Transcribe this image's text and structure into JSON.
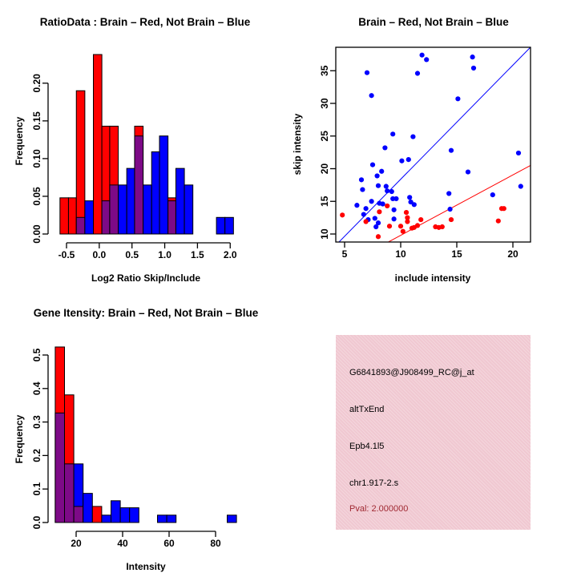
{
  "colors": {
    "red": "#FF0000",
    "blue": "#0000FF",
    "purple_overlap": "#7D0A87",
    "axis": "#000000",
    "info_box_bg": "#F0C8D1",
    "pval_text": "#A02A33"
  },
  "chart_data": [
    {
      "id": "ratio_histogram",
      "type": "bar",
      "title": "RatioData : Brain – Red, Not Brain – Blue",
      "xlabel": "Log2 Ratio Skip/Include",
      "ylabel": "Frequency",
      "xlim": [
        -0.72,
        2.2
      ],
      "ylim": [
        0,
        0.245
      ],
      "grid": false,
      "legend": "none",
      "xtick_values": [
        -0.5,
        0.0,
        0.5,
        1.0,
        1.5,
        2.0
      ],
      "xtick_labels": [
        "-0.5",
        "0.0",
        "0.5",
        "1.0",
        "1.5",
        "2.0"
      ],
      "ytick_values": [
        0.0,
        0.05,
        0.1,
        0.15,
        0.2
      ],
      "ytick_labels": [
        "0.00",
        "0.05",
        "0.10",
        "0.15",
        "0.20"
      ],
      "series_note": "red = Brain frequency, blue = Not Brain frequency, purple = overlap of the two histograms",
      "bars": [
        {
          "x0": -0.6,
          "x1": -0.47,
          "red": 0.048,
          "blue": 0
        },
        {
          "x0": -0.47,
          "x1": -0.35,
          "red": 0.048,
          "blue": 0
        },
        {
          "x0": -0.35,
          "x1": -0.22,
          "red": 0.19,
          "blue": 0.022
        },
        {
          "x0": -0.22,
          "x1": -0.09,
          "red": 0,
          "blue": 0.044
        },
        {
          "x0": -0.09,
          "x1": 0.04,
          "red": 0.238,
          "blue": 0
        },
        {
          "x0": 0.04,
          "x1": 0.16,
          "red": 0.143,
          "blue": 0.044
        },
        {
          "x0": 0.16,
          "x1": 0.29,
          "red": 0.143,
          "blue": 0.065
        },
        {
          "x0": 0.29,
          "x1": 0.42,
          "red": 0,
          "blue": 0.065
        },
        {
          "x0": 0.42,
          "x1": 0.54,
          "red": 0,
          "blue": 0.087
        },
        {
          "x0": 0.54,
          "x1": 0.67,
          "red": 0.143,
          "blue": 0.13
        },
        {
          "x0": 0.67,
          "x1": 0.8,
          "red": 0,
          "blue": 0.065
        },
        {
          "x0": 0.8,
          "x1": 0.92,
          "red": 0,
          "blue": 0.109
        },
        {
          "x0": 0.92,
          "x1": 1.05,
          "red": 0,
          "blue": 0.13
        },
        {
          "x0": 1.05,
          "x1": 1.17,
          "red": 0.048,
          "blue": 0.044
        },
        {
          "x0": 1.17,
          "x1": 1.3,
          "red": 0,
          "blue": 0.087
        },
        {
          "x0": 1.3,
          "x1": 1.43,
          "red": 0,
          "blue": 0.065
        },
        {
          "x0": 1.79,
          "x1": 1.92,
          "red": 0,
          "blue": 0.022
        },
        {
          "x0": 1.92,
          "x1": 2.05,
          "red": 0,
          "blue": 0.022
        }
      ]
    },
    {
      "id": "intensity_scatter",
      "type": "scatter",
      "title": "Brain – Red, Not Brain – Blue",
      "xlabel": "include intensity",
      "ylabel": "skip intensity",
      "xlim": [
        4.2,
        21.6
      ],
      "ylim": [
        8.7,
        38.6
      ],
      "grid": false,
      "legend": "none",
      "xtick_values": [
        5,
        10,
        15,
        20
      ],
      "xtick_labels": [
        "5",
        "10",
        "15",
        "20"
      ],
      "ytick_values": [
        10,
        15,
        20,
        25,
        30,
        35
      ],
      "ytick_labels": [
        "10",
        "15",
        "20",
        "25",
        "30",
        "35"
      ],
      "series": [
        {
          "name": "Not Brain",
          "color": "blue",
          "points": [
            [
              7.0,
              34.7
            ],
            [
              7.4,
              31.2
            ],
            [
              11.9,
              37.4
            ],
            [
              12.3,
              36.7
            ],
            [
              11.5,
              34.6
            ],
            [
              16.4,
              37.1
            ],
            [
              16.5,
              35.4
            ],
            [
              15.1,
              30.7
            ],
            [
              9.3,
              25.3
            ],
            [
              11.1,
              24.9
            ],
            [
              8.6,
              23.2
            ],
            [
              14.5,
              22.8
            ],
            [
              20.5,
              22.4
            ],
            [
              10.1,
              21.2
            ],
            [
              10.7,
              21.4
            ],
            [
              7.5,
              20.6
            ],
            [
              8.3,
              19.6
            ],
            [
              7.9,
              18.9
            ],
            [
              16.0,
              19.5
            ],
            [
              6.5,
              18.3
            ],
            [
              8.0,
              17.4
            ],
            [
              8.7,
              17.3
            ],
            [
              20.7,
              17.3
            ],
            [
              6.6,
              16.8
            ],
            [
              8.8,
              16.6
            ],
            [
              9.2,
              16.5
            ],
            [
              14.3,
              16.2
            ],
            [
              18.2,
              16.0
            ],
            [
              9.3,
              15.4
            ],
            [
              9.6,
              15.4
            ],
            [
              10.8,
              15.6
            ],
            [
              10.9,
              14.9
            ],
            [
              7.4,
              15.0
            ],
            [
              8.1,
              14.7
            ],
            [
              6.1,
              14.4
            ],
            [
              8.4,
              14.6
            ],
            [
              6.9,
              13.9
            ],
            [
              9.4,
              13.7
            ],
            [
              14.4,
              13.8
            ],
            [
              6.7,
              13.0
            ],
            [
              7.7,
              12.4
            ],
            [
              7.1,
              12.2
            ],
            [
              9.4,
              12.3
            ],
            [
              8.0,
              11.7
            ],
            [
              7.8,
              11.1
            ],
            [
              11.2,
              14.5
            ]
          ]
        },
        {
          "name": "Brain",
          "color": "red",
          "points": [
            [
              4.8,
              12.9
            ],
            [
              8.1,
              13.4
            ],
            [
              8.8,
              14.3
            ],
            [
              6.9,
              11.9
            ],
            [
              8.0,
              9.6
            ],
            [
              9.0,
              11.2
            ],
            [
              10.0,
              11.2
            ],
            [
              10.2,
              10.4
            ],
            [
              10.5,
              13.3
            ],
            [
              10.6,
              12.5
            ],
            [
              10.6,
              11.9
            ],
            [
              11.0,
              10.9
            ],
            [
              11.2,
              11.0
            ],
            [
              11.5,
              11.3
            ],
            [
              11.8,
              12.2
            ],
            [
              13.1,
              11.1
            ],
            [
              13.4,
              11.0
            ],
            [
              13.7,
              11.1
            ],
            [
              14.5,
              12.2
            ],
            [
              18.7,
              12.0
            ],
            [
              19.0,
              13.9
            ],
            [
              19.2,
              13.9
            ]
          ]
        }
      ],
      "lines": [
        {
          "name": "not-brain-fit",
          "color": "blue",
          "p1": [
            4.4,
            8.6
          ],
          "p2": [
            21.8,
            39.0
          ]
        },
        {
          "name": "brain-fit",
          "color": "red",
          "p1": [
            8.6,
            8.5
          ],
          "p2": [
            22.0,
            20.9
          ]
        }
      ]
    },
    {
      "id": "gene_intensity_histogram",
      "type": "bar",
      "title": "Gene Itensity: Brain – Red, Not Brain – Blue",
      "xlabel": "Intensity",
      "ylabel": "Frequency",
      "xlim": [
        9,
        92
      ],
      "ylim": [
        0,
        0.54
      ],
      "grid": false,
      "legend": "none",
      "xtick_values": [
        20,
        40,
        60,
        80
      ],
      "xtick_labels": [
        "20",
        "40",
        "60",
        "80"
      ],
      "ytick_values": [
        0.0,
        0.1,
        0.2,
        0.3,
        0.4,
        0.5
      ],
      "ytick_labels": [
        "0.0",
        "0.1",
        "0.2",
        "0.3",
        "0.4",
        "0.5"
      ],
      "series_note": "red = Brain frequency, blue = Not Brain frequency, purple = overlap of the two histograms",
      "bars": [
        {
          "x0": 11,
          "x1": 15,
          "red": 0.524,
          "blue": 0.327
        },
        {
          "x0": 15,
          "x1": 19,
          "red": 0.381,
          "blue": 0.175
        },
        {
          "x0": 19,
          "x1": 23,
          "red": 0.048,
          "blue": 0.175
        },
        {
          "x0": 23,
          "x1": 27,
          "red": 0,
          "blue": 0.087
        },
        {
          "x0": 27,
          "x1": 31,
          "red": 0.048,
          "blue": 0
        },
        {
          "x0": 31,
          "x1": 35,
          "red": 0,
          "blue": 0.022
        },
        {
          "x0": 35,
          "x1": 39,
          "red": 0,
          "blue": 0.065
        },
        {
          "x0": 39,
          "x1": 43,
          "red": 0,
          "blue": 0.044
        },
        {
          "x0": 43,
          "x1": 47,
          "red": 0,
          "blue": 0.044
        },
        {
          "x0": 55,
          "x1": 59,
          "red": 0,
          "blue": 0.022
        },
        {
          "x0": 59,
          "x1": 63,
          "red": 0,
          "blue": 0.022
        },
        {
          "x0": 85,
          "x1": 89,
          "red": 0,
          "blue": 0.022
        }
      ]
    }
  ],
  "info_box": {
    "probe_id": "G6841893@J908499_RC@j_at",
    "event_type": "altTxEnd",
    "gene_symbol": "Epb4.1l5",
    "location": "chr1.917-2.s",
    "pval_line": "Pval: 2.000000"
  }
}
